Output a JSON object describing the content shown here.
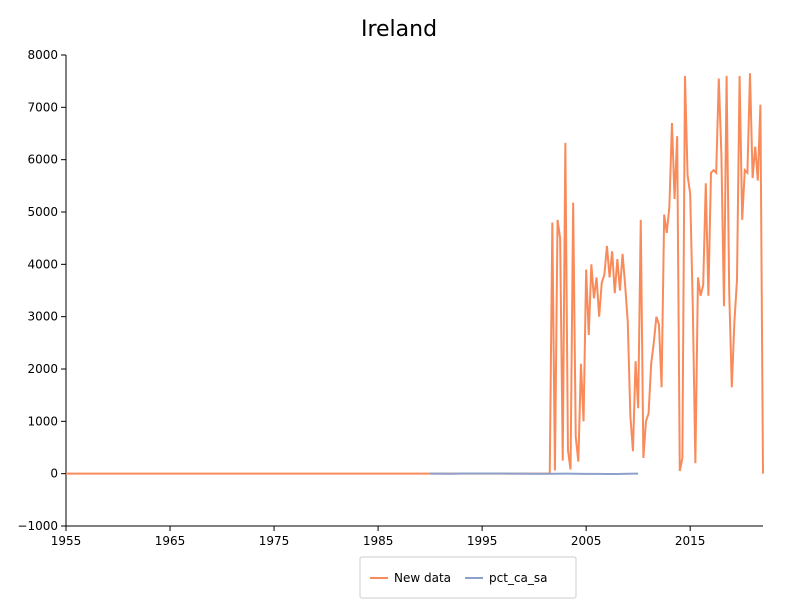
{
  "chart_data": {
    "type": "line",
    "title": "Ireland",
    "xlim": [
      1955,
      2022
    ],
    "xticks": [
      1955,
      1965,
      1975,
      1985,
      1995,
      2005,
      2015
    ],
    "ylim": [
      -1000,
      8000
    ],
    "yticks": [
      {
        "value": -1000,
        "label": "−1000"
      },
      0,
      1000,
      2000,
      3000,
      4000,
      5000,
      6000,
      7000,
      8000
    ],
    "series": [
      {
        "name": "New data",
        "color": "#f98b5a",
        "x": [
          1955,
          2001.5,
          2001.75,
          2002,
          2002.25,
          2002.5,
          2002.75,
          2003,
          2003.25,
          2003.5,
          2003.75,
          2004,
          2004.25,
          2004.5,
          2004.75,
          2005,
          2005.25,
          2005.5,
          2005.75,
          2006,
          2006.25,
          2006.5,
          2006.75,
          2007,
          2007.25,
          2007.5,
          2007.75,
          2008,
          2008.25,
          2008.5,
          2008.75,
          2009,
          2009.25,
          2009.5,
          2009.75,
          2010,
          2010.25,
          2010.5,
          2010.75,
          2011,
          2011.25,
          2011.5,
          2011.75,
          2012,
          2012.25,
          2012.5,
          2012.75,
          2013,
          2013.25,
          2013.5,
          2013.75,
          2014,
          2014.25,
          2014.5,
          2014.75,
          2015,
          2015.25,
          2015.5,
          2015.75,
          2016,
          2016.25,
          2016.5,
          2016.75,
          2017,
          2017.25,
          2017.5,
          2017.75,
          2018,
          2018.25,
          2018.5,
          2018.75,
          2019,
          2019.25,
          2019.5,
          2019.75,
          2020,
          2020.25,
          2020.5,
          2020.75,
          2021,
          2021.25,
          2021.5,
          2021.75,
          2022
        ],
        "values": [
          0,
          0,
          4800,
          60,
          4850,
          4500,
          250,
          6320,
          450,
          80,
          5180,
          700,
          230,
          2100,
          1000,
          3900,
          2650,
          4000,
          3350,
          3750,
          3000,
          3650,
          3800,
          4350,
          3750,
          4250,
          3450,
          4100,
          3500,
          4200,
          3600,
          2900,
          1100,
          430,
          2150,
          1250,
          4850,
          300,
          1000,
          1150,
          2100,
          2500,
          3000,
          2850,
          1650,
          4950,
          4600,
          5100,
          6700,
          5250,
          6450,
          50,
          300,
          7600,
          5700,
          5350,
          3200,
          200,
          3750,
          3400,
          3600,
          5550,
          3400,
          5750,
          5800,
          5750,
          7550,
          6100,
          3200,
          7600,
          3500,
          1650,
          2900,
          3700,
          7600,
          4850,
          5800,
          5750,
          7650,
          5650,
          6250,
          5600,
          7050,
          0
        ]
      },
      {
        "name": "pct_ca_sa",
        "color": "#8da0cb",
        "x": [
          1990,
          1991,
          1992,
          1993,
          1994,
          1995,
          1996,
          1997,
          1998,
          1999,
          2000,
          2001,
          2002,
          2003,
          2004,
          2005,
          2006,
          2007,
          2008,
          2009,
          2010
        ],
        "values": [
          0.3,
          1.1,
          -0.5,
          2.3,
          2.8,
          2.6,
          2.9,
          2.3,
          0.8,
          0.3,
          -0.4,
          -0.6,
          -0.9,
          0.0,
          -0.6,
          -3.5,
          -3.5,
          -5.3,
          -5.7,
          -2.3,
          0.6
        ]
      }
    ]
  }
}
